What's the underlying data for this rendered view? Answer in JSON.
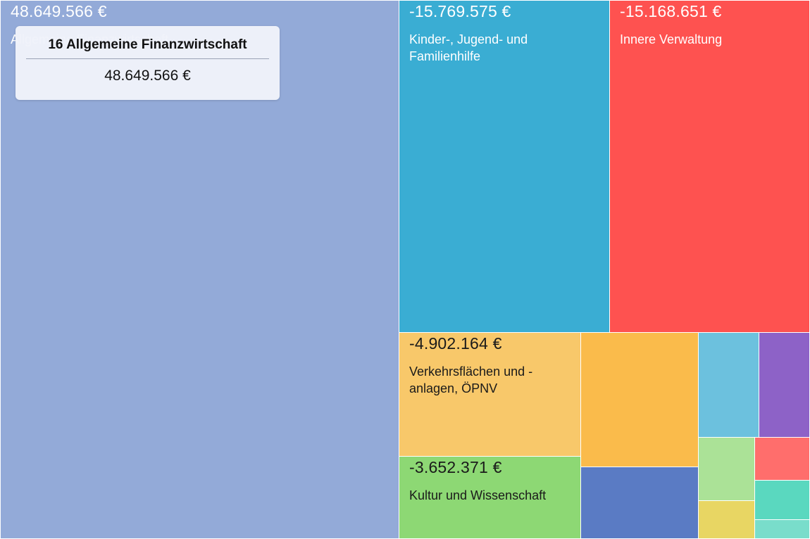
{
  "chart_data": {
    "type": "treemap",
    "items": [
      {
        "label": "Allgemeine Finanzwirtschaft",
        "value_text": "48.649.566 €",
        "value": 48649566,
        "color": "#93aad8",
        "show_label": true
      },
      {
        "label": "Kinder-, Jugend- und Familienhilfe",
        "value_text": "-15.769.575 €",
        "value": -15769575,
        "color": "#3aadd3",
        "show_label": true
      },
      {
        "label": "Innere Verwaltung",
        "value_text": "-15.168.651 €",
        "value": -15168651,
        "color": "#fe5250",
        "show_label": true
      },
      {
        "label": "Verkehrsflächen und -anlagen, ÖPNV",
        "value_text": "-4.902.164 €",
        "value": -4902164,
        "color": "#f8c86a",
        "show_label": true
      },
      {
        "label": "Kultur und Wissenschaft",
        "value_text": "-3.652.371 €",
        "value": -3652371,
        "color": "#8dd874",
        "show_label": true
      },
      {
        "label": "",
        "value_text": "",
        "color": "#fabb4b",
        "show_label": false
      },
      {
        "label": "",
        "value_text": "",
        "color": "#5a7bc4",
        "show_label": false
      },
      {
        "label": "",
        "value_text": "",
        "color": "#6cc1de",
        "show_label": false
      },
      {
        "label": "",
        "value_text": "",
        "color": "#8d62c7",
        "show_label": false
      },
      {
        "label": "",
        "value_text": "",
        "color": "#abe297",
        "show_label": false
      },
      {
        "label": "",
        "value_text": "",
        "color": "#ff6e6c",
        "show_label": false
      },
      {
        "label": "",
        "value_text": "",
        "color": "#e8d663",
        "show_label": false
      },
      {
        "label": "",
        "value_text": "",
        "color": "#5ad8bf",
        "show_label": false
      },
      {
        "label": "",
        "value_text": "",
        "color": "#79ddcb",
        "show_label": false
      }
    ]
  },
  "tooltip": {
    "title": "16 Allgemeine Finanzwirtschaft",
    "value": "48.649.566 €"
  }
}
